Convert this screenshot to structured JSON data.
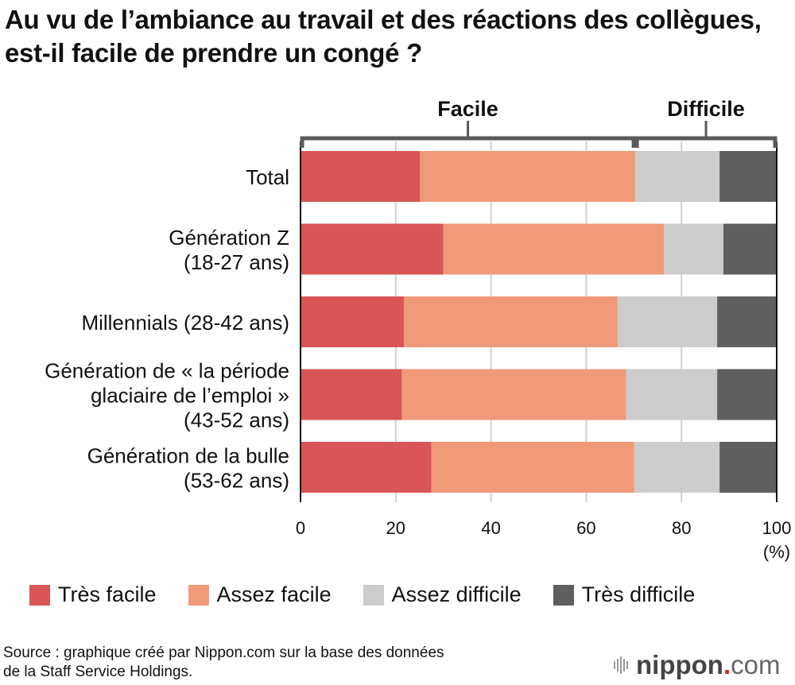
{
  "title": "Au vu de l’ambiance au travail et des réactions des collègues, est-il facile de prendre un  congé ?",
  "chart_data": {
    "type": "bar",
    "orientation": "horizontal-stacked-100",
    "title": "Au vu de l’ambiance au travail et des réactions des collègues, est-il facile de prendre un  congé ?",
    "categories": [
      [
        "Total"
      ],
      [
        "Génération Z",
        "(18-27 ans)"
      ],
      [
        "Millennials (28-42 ans)"
      ],
      [
        "Génération de « la période",
        "glaciaire de l’emploi »",
        "(43-52 ans)"
      ],
      [
        "Génération de la bulle",
        "(53-62 ans)"
      ]
    ],
    "series": [
      {
        "name": "Très facile",
        "color": "#d95556",
        "values": [
          25.1,
          30.0,
          21.7,
          21.3,
          27.5
        ]
      },
      {
        "name": "Assez facile",
        "color": "#f19a7a",
        "values": [
          45.2,
          46.3,
          44.9,
          47.1,
          42.6
        ]
      },
      {
        "name": "Assez difficile",
        "color": "#cccccc",
        "values": [
          17.7,
          12.5,
          20.9,
          19.1,
          17.9
        ]
      },
      {
        "name": "Très difficile",
        "color": "#5f5f5f",
        "values": [
          12.0,
          11.2,
          12.5,
          12.5,
          12.0
        ]
      }
    ],
    "xlim": [
      0,
      100
    ],
    "xticks": [
      "0",
      "20",
      "40",
      "60",
      "80",
      "100"
    ],
    "xunit": "(%)",
    "grid": true,
    "legend": "bottom",
    "groups": [
      {
        "label": "Facile",
        "from": 0,
        "to": 70.3
      },
      {
        "label": "Difficile",
        "from": 70.3,
        "to": 100
      }
    ]
  },
  "legend": [
    "Très facile",
    "Assez facile",
    "Assez difficile",
    "Très difficile"
  ],
  "source": [
    "Source : graphique créé par Nippon.com sur la base des données",
    "de la Staff Service Holdings."
  ],
  "logo": {
    "name": "nippon",
    "dot": ".",
    "suffix": "com"
  }
}
